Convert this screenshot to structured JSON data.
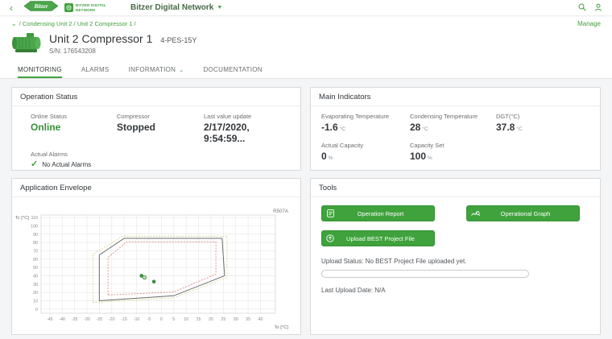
{
  "colors": {
    "accent_green": "#3fa23c",
    "online_green": "#359135",
    "value_dark": "#32363a"
  },
  "appbar": {
    "back_icon": "back-chevron",
    "brand_logo_text": "Bitzer",
    "bdn_logo_line1": "BITZER DIGITAL",
    "bdn_logo_line2": "NETWORK",
    "title": "Bitzer Digital Network",
    "title_caret": "▼",
    "search_icon": "search",
    "user_icon": "user"
  },
  "breadcrumb": {
    "path": "/ Condensing Unit 2 / Unit 2 Compressor 1 /",
    "manage_label": "Manage"
  },
  "unit": {
    "title": "Unit 2 Compressor 1",
    "model": "4-PES-15Y",
    "serial": "S/N: 176543208"
  },
  "tabs": [
    {
      "label": "MONITORING",
      "active": true
    },
    {
      "label": "ALARMS",
      "active": false
    },
    {
      "label": "INFORMATION",
      "active": false,
      "dropdown": true
    },
    {
      "label": "DOCUMENTATION",
      "active": false
    }
  ],
  "operation_status": {
    "title": "Operation Status",
    "fields": [
      {
        "label": "Online Status",
        "value": "Online"
      },
      {
        "label": "Compressor",
        "value": "Stopped"
      },
      {
        "label": "Last value update",
        "value": "2/17/2020, 9:54:59..."
      }
    ],
    "alarms": {
      "label": "Actual Alarms",
      "value": "No Actual Alarms"
    }
  },
  "main_indicators": {
    "title": "Main Indicators",
    "fields": [
      {
        "label": "Evaporating Temperature",
        "value": "-1.6",
        "unit": "°C"
      },
      {
        "label": "Condensing Temperature",
        "value": "28",
        "unit": "°C"
      },
      {
        "label": "DGT(°C)",
        "value": "37.8",
        "unit": "°C"
      },
      {
        "label": "Actual Capacity",
        "value": "0",
        "unit": "%"
      },
      {
        "label": "Capacity Set",
        "value": "100",
        "unit": "%"
      }
    ]
  },
  "envelope_panel": {
    "title": "Application Envelope"
  },
  "tools": {
    "title": "Tools",
    "buttons": [
      {
        "label": "Operation Report",
        "icon": "report-icon"
      },
      {
        "label": "Operational Graph",
        "icon": "graph-icon"
      },
      {
        "label": "Upload BEST Project File",
        "icon": "upload-icon"
      }
    ],
    "upload_status": "Upload Status: No BEST Project File uploaded yet.",
    "last_upload": "Last Upload Date: N/A"
  },
  "chart_data": {
    "type": "scatter",
    "title": "Application Envelope",
    "annotation": "R507A",
    "xlabel": "To [°C]",
    "ylabel": "Tc [°C]",
    "xlim": [
      -48.5,
      46
    ],
    "ylim": [
      -5,
      113
    ],
    "xticks": [
      -45,
      -40,
      -35,
      -30,
      -25,
      -20,
      -15,
      -10,
      -5,
      0,
      5,
      10,
      15,
      20,
      25,
      30,
      35,
      40
    ],
    "yticks": [
      0,
      10,
      20,
      30,
      40,
      50,
      60,
      70,
      80,
      90,
      100,
      110
    ],
    "grid": true,
    "point_color": "#3c8f3c",
    "envelopes": [
      {
        "name": "outer-limit",
        "color": "#d2d695",
        "dashed": true,
        "points": [
          [
            -27.5,
            8
          ],
          [
            -27.5,
            66
          ],
          [
            -15.5,
            87.5
          ],
          [
            26.5,
            87.5
          ],
          [
            26.5,
            38
          ],
          [
            5,
            13.5
          ]
        ]
      },
      {
        "name": "operating-envelope",
        "color": "#6b6b6b",
        "dashed": false,
        "points": [
          [
            -25,
            10
          ],
          [
            -25,
            65
          ],
          [
            -15,
            85
          ],
          [
            24.5,
            85
          ],
          [
            25.5,
            40
          ],
          [
            5,
            16
          ]
        ]
      },
      {
        "name": "inner-limit",
        "color": "#e08a8a",
        "dashed": true,
        "points": [
          [
            -21.5,
            17
          ],
          [
            -21.5,
            62
          ],
          [
            -14,
            80.5
          ],
          [
            22,
            80.5
          ],
          [
            22,
            42
          ],
          [
            5,
            20.5
          ]
        ]
      }
    ],
    "points": [
      {
        "x": -8,
        "y": 40,
        "style": "solid"
      },
      {
        "x": -6.8,
        "y": 38,
        "style": "light"
      },
      {
        "x": -3,
        "y": 33,
        "style": "solid"
      }
    ]
  }
}
